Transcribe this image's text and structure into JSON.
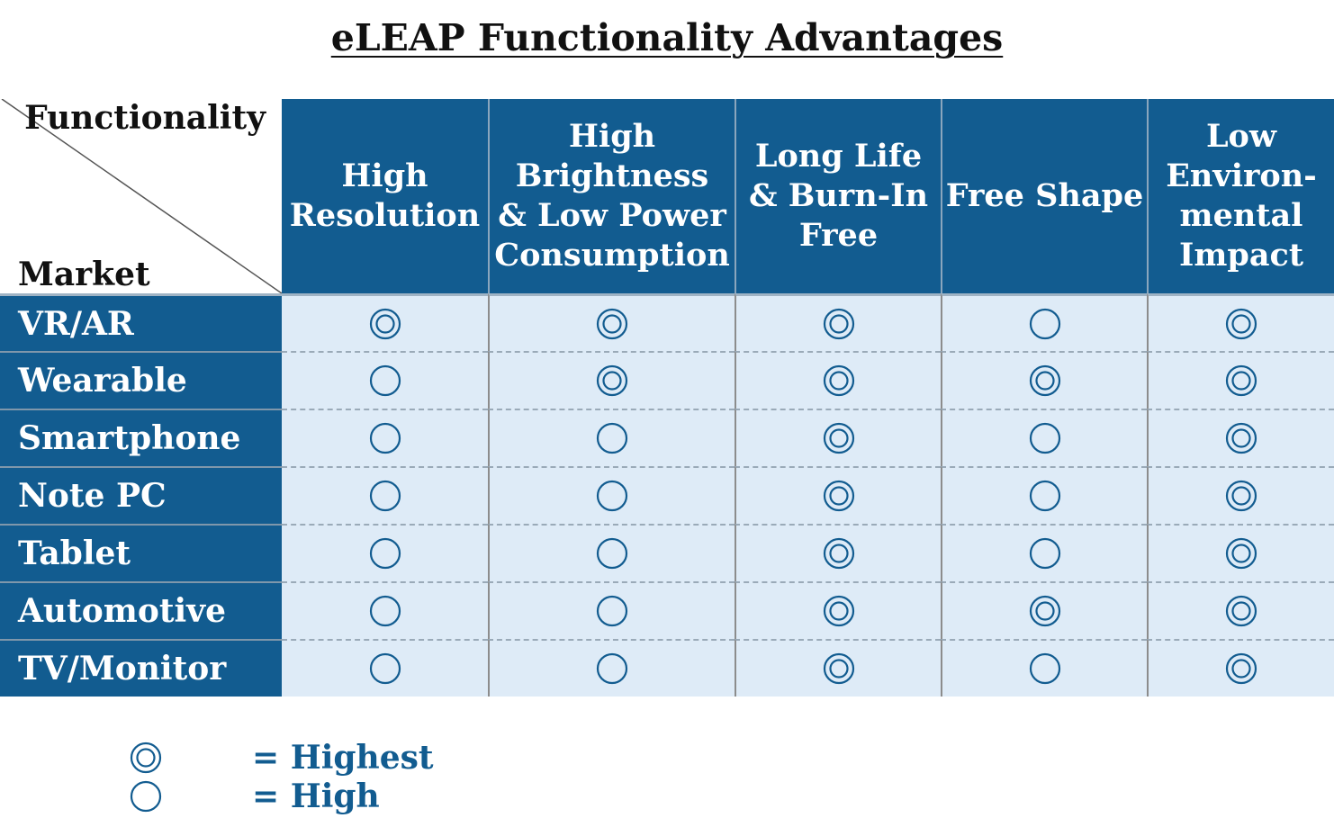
{
  "title": "eLEAP Functionality Advantages",
  "corner": {
    "column_axis": "Functionality",
    "row_axis": "Market"
  },
  "columns": [
    "High\nResolution",
    "High\nBrightness\n& Low Power\nConsumption",
    "Long Life\n& Burn-In\nFree",
    "Free Shape",
    "Low\nEnviron-\nmental\nImpact"
  ],
  "rows": [
    {
      "market": "VR/AR",
      "ratings": [
        "highest",
        "highest",
        "highest",
        "high",
        "highest"
      ]
    },
    {
      "market": "Wearable",
      "ratings": [
        "high",
        "highest",
        "highest",
        "highest",
        "highest"
      ]
    },
    {
      "market": "Smartphone",
      "ratings": [
        "high",
        "high",
        "highest",
        "high",
        "highest"
      ]
    },
    {
      "market": "Note PC",
      "ratings": [
        "high",
        "high",
        "highest",
        "high",
        "highest"
      ]
    },
    {
      "market": "Tablet",
      "ratings": [
        "high",
        "high",
        "highest",
        "high",
        "highest"
      ]
    },
    {
      "market": "Automotive",
      "ratings": [
        "high",
        "high",
        "highest",
        "highest",
        "highest"
      ]
    },
    {
      "market": "TV/Monitor",
      "ratings": [
        "high",
        "high",
        "highest",
        "high",
        "highest"
      ]
    }
  ],
  "legend": [
    {
      "symbol": "highest",
      "label": "= Highest"
    },
    {
      "symbol": "high",
      "label": "= High"
    }
  ],
  "colors": {
    "header_bg": "#125c90",
    "cell_bg": "#deebf7",
    "mark": "#125c90"
  }
}
